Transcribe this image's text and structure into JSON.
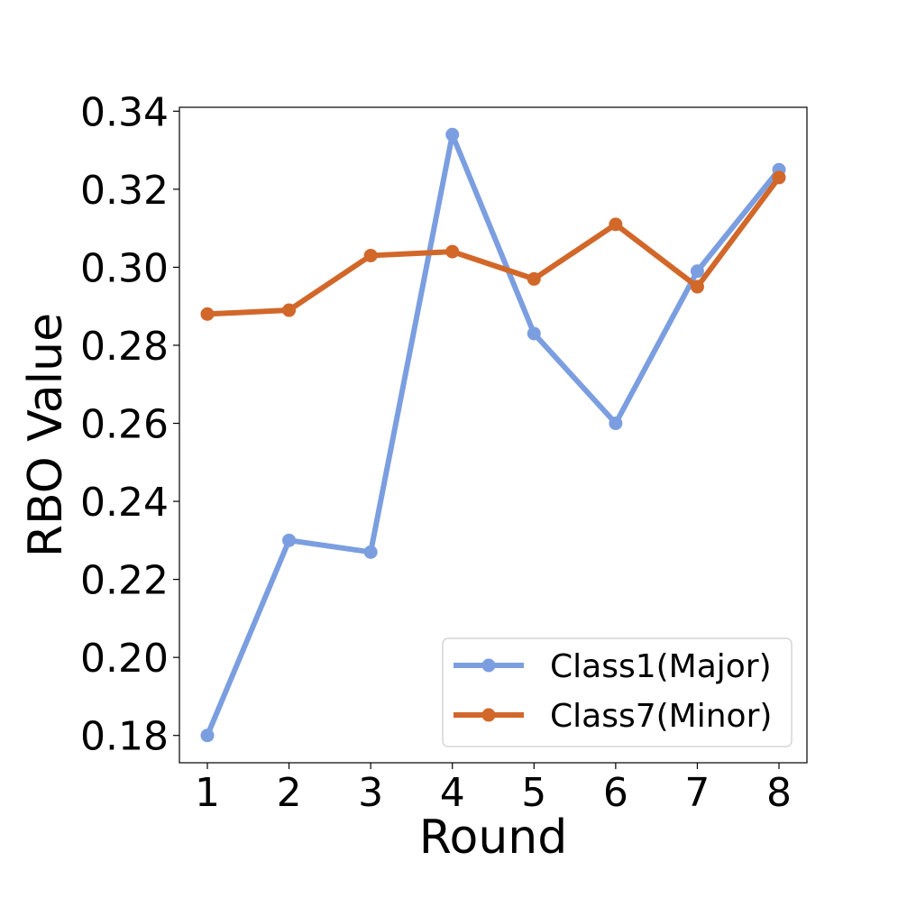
{
  "chart_data": {
    "type": "line",
    "xlabel": "Round",
    "ylabel": "RBO Value",
    "x": [
      1,
      2,
      3,
      4,
      5,
      6,
      7,
      8
    ],
    "xticks": [
      "1",
      "2",
      "3",
      "4",
      "5",
      "6",
      "7",
      "8"
    ],
    "ylim": [
      0.173,
      0.341
    ],
    "yticks": [
      "0.18",
      "0.20",
      "0.22",
      "0.24",
      "0.26",
      "0.28",
      "0.30",
      "0.32",
      "0.34"
    ],
    "ytick_values": [
      0.18,
      0.2,
      0.22,
      0.24,
      0.26,
      0.28,
      0.3,
      0.32,
      0.34
    ],
    "grid": false,
    "legend_position": "bottom-right",
    "series": [
      {
        "name": "Class1(Major)",
        "color": "#7b9ee0",
        "values": [
          0.18,
          0.23,
          0.227,
          0.334,
          0.283,
          0.26,
          0.299,
          0.325
        ]
      },
      {
        "name": "Class7(Minor)",
        "color": "#d2672a",
        "values": [
          0.288,
          0.289,
          0.303,
          0.304,
          0.297,
          0.311,
          0.295,
          0.323
        ]
      }
    ]
  }
}
